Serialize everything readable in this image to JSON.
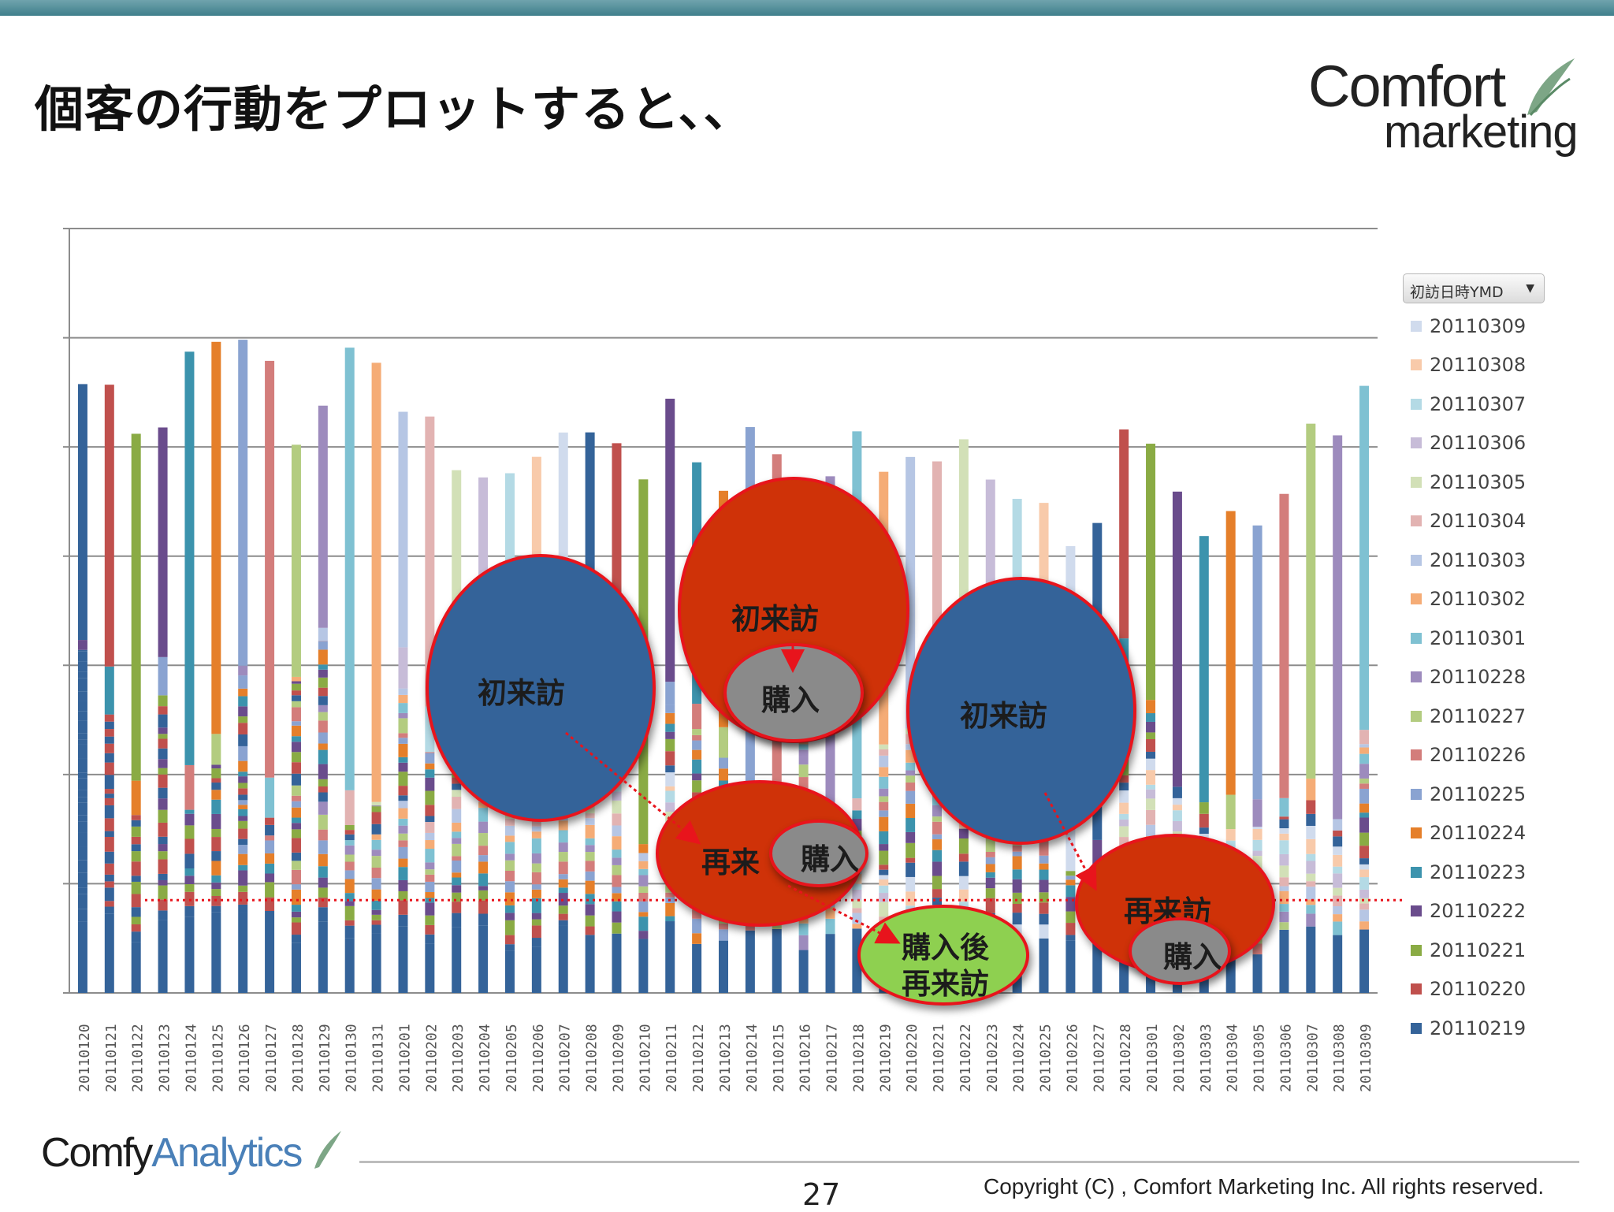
{
  "slide": {
    "title": "個客の行動をプロットすると、、",
    "logo_top_line1": "Comfort",
    "logo_top_line2": "marketing",
    "footer_logo_part1": "Comfy",
    "footer_logo_part2": "Analytics",
    "page_number": "27",
    "copyright": "Copyright (C) , Comfort Marketing Inc. All rights reserved."
  },
  "annotations": {
    "first_visit_1": "初来訪",
    "first_visit_2": "初来訪",
    "first_visit_3": "初来訪",
    "purchase_1": "購入",
    "purchase_2": "購入",
    "purchase_3": "購入",
    "revisit_1": "再来",
    "revisit_2": "再来訪",
    "after_purchase_line1": "購入後",
    "after_purchase_line2": "再来訪"
  },
  "chart_data": {
    "type": "bar",
    "stacked": true,
    "legend_title": "初訪日時YMD",
    "legend_position": "right",
    "grid": true,
    "ylim": [
      0,
      700
    ],
    "categories": [
      "20110120",
      "20110121",
      "20110122",
      "20110123",
      "20110124",
      "20110125",
      "20110126",
      "20110127",
      "20110128",
      "20110129",
      "20110130",
      "20110131",
      "20110201",
      "20110202",
      "20110203",
      "20110204",
      "20110205",
      "20110206",
      "20110207",
      "20110208",
      "20110209",
      "20110210",
      "20110211",
      "20110212",
      "20110213",
      "20110214",
      "20110215",
      "20110216",
      "20110217",
      "20110218",
      "20110219",
      "20110220",
      "20110221",
      "20110222",
      "20110223",
      "20110224",
      "20110225",
      "20110226",
      "20110227",
      "20110228",
      "20110301",
      "20110302",
      "20110303",
      "20110304",
      "20110305",
      "20110306",
      "20110307",
      "20110308",
      "20110309"
    ],
    "totals": [
      568,
      562,
      518,
      518,
      590,
      606,
      600,
      582,
      512,
      548,
      594,
      582,
      536,
      540,
      484,
      482,
      476,
      492,
      520,
      518,
      504,
      474,
      548,
      494,
      460,
      524,
      496,
      474,
      478,
      516,
      478,
      494,
      490,
      508,
      480,
      454,
      450,
      418,
      432,
      522,
      510,
      462,
      420,
      444,
      432,
      466,
      522,
      516,
      560
    ],
    "legend_series": [
      "20110309",
      "20110308",
      "20110307",
      "20110306",
      "20110305",
      "20110304",
      "20110303",
      "20110302",
      "20110301",
      "20110228",
      "20110227",
      "20110226",
      "20110225",
      "20110224",
      "20110223",
      "20110222",
      "20110221",
      "20110220",
      "20110219"
    ],
    "threshold_value": 85
  },
  "colors": {
    "palette": [
      "#346399",
      "#c0504d",
      "#8aab44",
      "#6a4c8c",
      "#3c93ad",
      "#e57f2a",
      "#8aa3d1",
      "#d37d7b",
      "#b3cc80",
      "#9d8bbd",
      "#7fc1d2",
      "#f5ac76",
      "#b6c6e4",
      "#e2b3b2",
      "#d2e0b7",
      "#c7bcd8",
      "#b4dae5",
      "#f8caaa",
      "#d0dbed"
    ],
    "first_visit_bubble": "#346399",
    "revisit_bubble": "#cf3208",
    "purchase_bubble": "#8a8a8a",
    "after_purchase_bubble": "#8ed050",
    "bubble_border": "#e8141c",
    "arrow": "#e8141c"
  }
}
